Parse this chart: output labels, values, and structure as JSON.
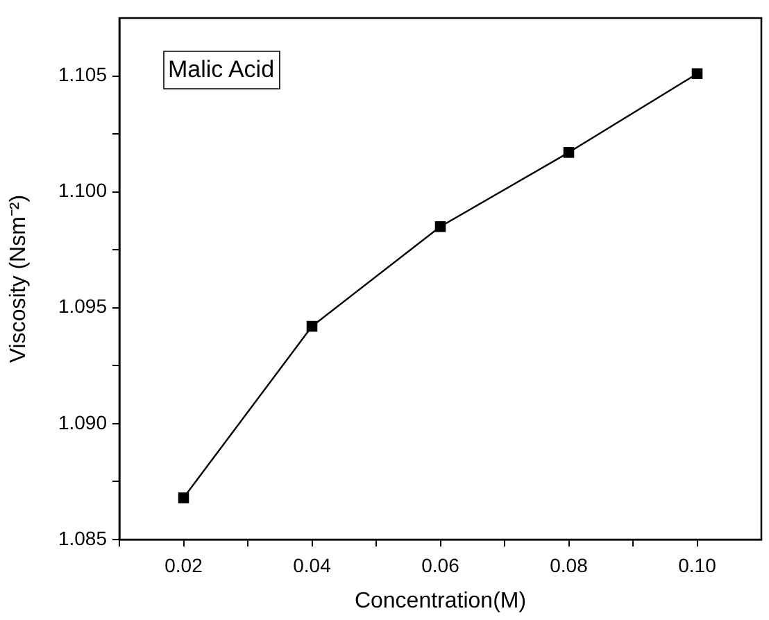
{
  "chart_data": {
    "type": "line",
    "xlabel": "Concentration(M)",
    "ylabel": "Viscosity (Nsm⁻²)",
    "annotations": [
      "Malic Acid"
    ],
    "x": [
      0.02,
      0.04,
      0.06,
      0.08,
      0.1
    ],
    "series": [
      {
        "color": "#000000",
        "values": [
          1.0868,
          1.0942,
          1.0985,
          1.1017,
          1.1051
        ]
      }
    ],
    "xlim": [
      0.01,
      0.11
    ],
    "xticks": [
      {
        "value": 0.01,
        "label": null
      },
      0.02,
      {
        "value": 0.03,
        "label": null
      },
      0.04,
      {
        "value": 0.05,
        "label": null
      },
      0.06,
      {
        "value": 0.07,
        "label": null
      },
      0.08,
      {
        "value": 0.09,
        "label": null
      },
      {
        "value": 0.1,
        "label": "0.10"
      }
    ],
    "ylim": [
      1.085,
      1.1075
    ],
    "yticks": [
      1.085,
      {
        "value": 1.0875,
        "label": null
      },
      {
        "value": 1.09,
        "label": "1.090"
      },
      {
        "value": 1.0925,
        "label": null
      },
      1.095,
      {
        "value": 1.0975,
        "label": null
      },
      {
        "value": 1.1,
        "label": "1.100"
      },
      {
        "value": 1.1025,
        "label": null
      },
      1.105
    ],
    "marker": "square",
    "line_style": "solid",
    "grid": false,
    "legend": false
  }
}
